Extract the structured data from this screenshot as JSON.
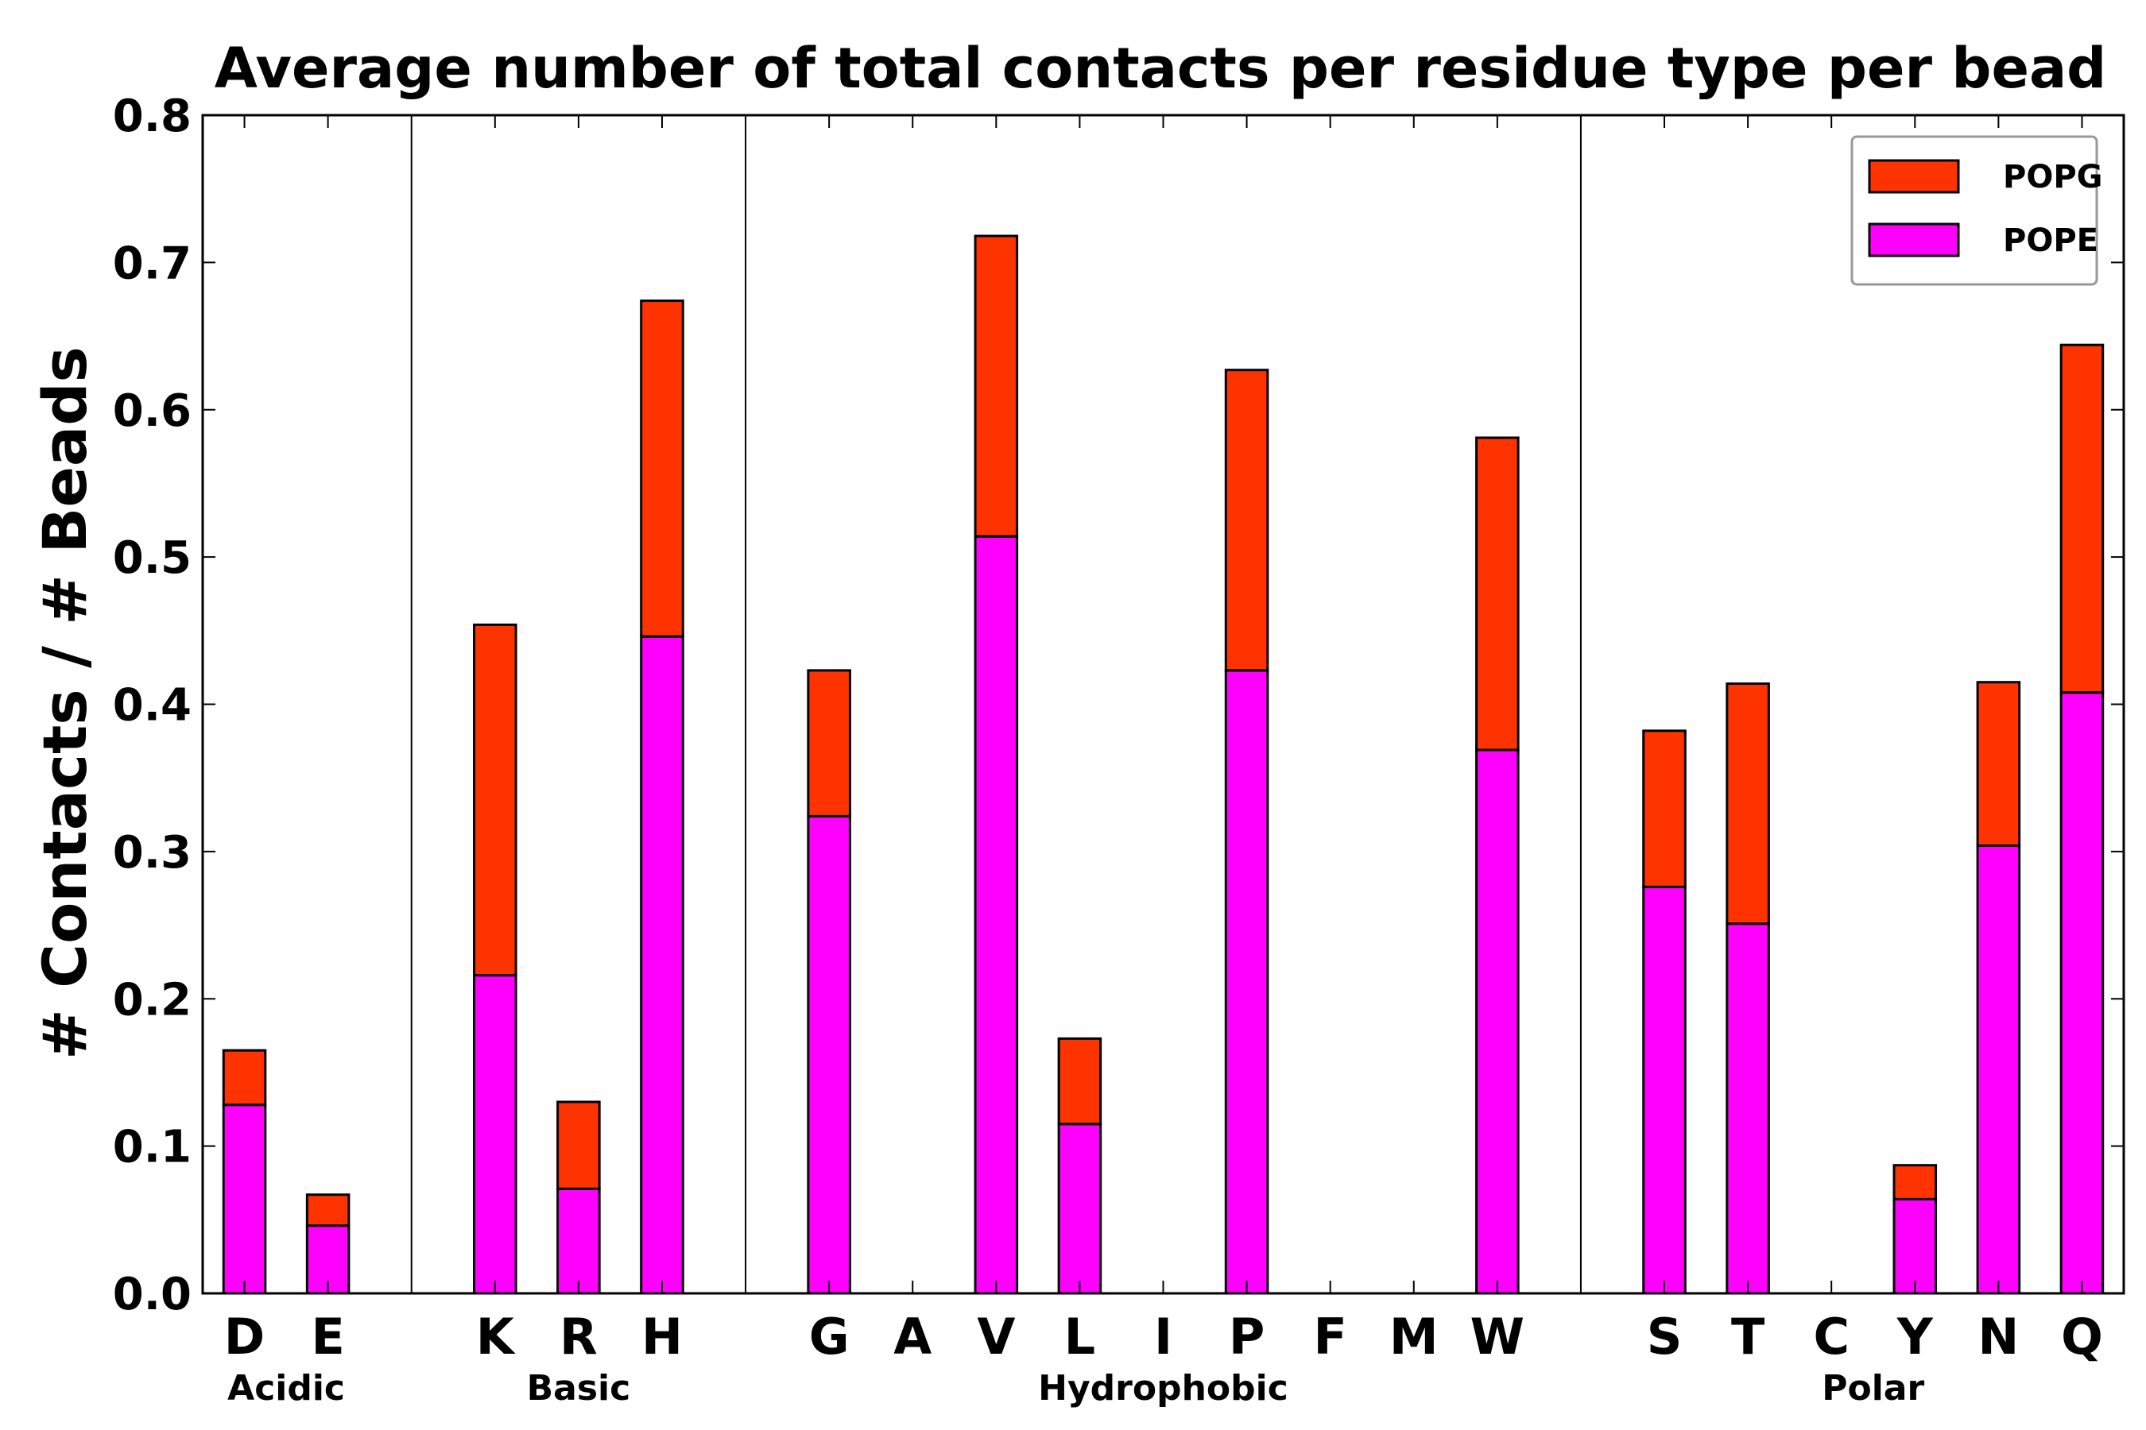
{
  "chart_data": {
    "type": "bar",
    "stacked": true,
    "title": "Average number of total contacts per residue type per bead",
    "xlabel": "",
    "ylabel": "# Contacts / # Beads",
    "ylim": [
      0,
      0.8
    ],
    "yticks": [
      "0.0",
      "0.1",
      "0.2",
      "0.3",
      "0.4",
      "0.5",
      "0.6",
      "0.7",
      "0.8"
    ],
    "grid": false,
    "legend_position": "top-right",
    "categories": [
      "D",
      "E",
      "",
      "K",
      "R",
      "H",
      "",
      "G",
      "A",
      "V",
      "L",
      "I",
      "P",
      "F",
      "M",
      "W",
      "",
      "S",
      "T",
      "C",
      "Y",
      "N",
      "Q"
    ],
    "groups": [
      {
        "name": "Acidic",
        "members": [
          "D",
          "E"
        ]
      },
      {
        "name": "Basic",
        "members": [
          "K",
          "R",
          "H"
        ]
      },
      {
        "name": "Hydrophobic",
        "members": [
          "G",
          "A",
          "V",
          "L",
          "I",
          "P",
          "F",
          "M",
          "W"
        ]
      },
      {
        "name": "Polar",
        "members": [
          "S",
          "T",
          "C",
          "Y",
          "N",
          "Q"
        ]
      }
    ],
    "series": [
      {
        "name": "POPE",
        "color": "#ff00ff",
        "values": [
          0.128,
          0.046,
          0,
          0.216,
          0.071,
          0.446,
          0,
          0.324,
          0,
          0.514,
          0.115,
          0,
          0.423,
          0,
          0,
          0.369,
          0,
          0.276,
          0.251,
          0,
          0.064,
          0.304,
          0.408
        ]
      },
      {
        "name": "POPG",
        "color": "#ff3300",
        "values": [
          0.037,
          0.021,
          0,
          0.238,
          0.059,
          0.228,
          0,
          0.099,
          0,
          0.204,
          0.058,
          0,
          0.204,
          0,
          0,
          0.212,
          0,
          0.106,
          0.163,
          0,
          0.023,
          0.111,
          0.236
        ]
      }
    ],
    "legend_order": [
      "POPG",
      "POPE"
    ]
  }
}
